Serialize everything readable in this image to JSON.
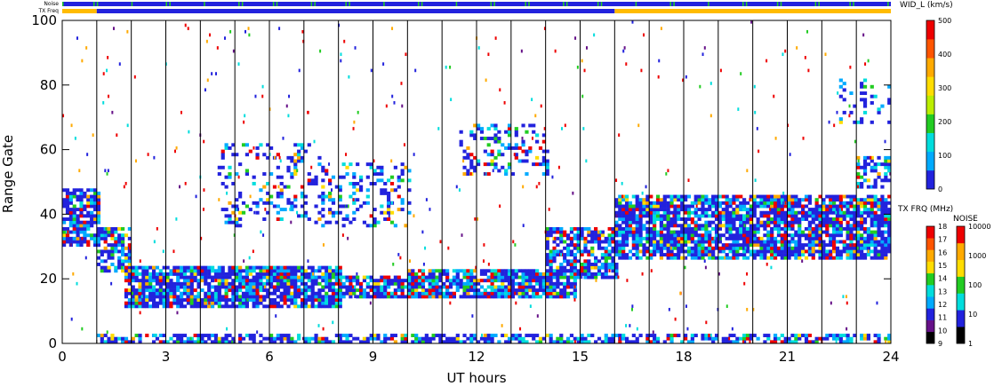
{
  "chart_data": {
    "type": "heatmap",
    "xlabel": "UT hours",
    "ylabel": "Range Gate",
    "xlim": [
      0,
      24
    ],
    "ylim": [
      0,
      100
    ],
    "x_ticks": [
      "0",
      "3",
      "6",
      "9",
      "12",
      "15",
      "18",
      "21",
      "24"
    ],
    "y_ticks": [
      "0",
      "20",
      "40",
      "60",
      "80",
      "100"
    ],
    "strip_labels": {
      "noise": "Noise",
      "txfreq": "TX Freq"
    },
    "strips": {
      "noise_color": "#2222dd",
      "noise_flecks_color": "#22cc22",
      "txfreq_segments": [
        {
          "from": 0,
          "to": 1.0,
          "color": "#ffbb00"
        },
        {
          "from": 1.0,
          "to": 16.0,
          "color": "#2222dd"
        },
        {
          "from": 16.0,
          "to": 24.0,
          "color": "#ffbb00"
        }
      ]
    },
    "vertical_lines_hours": [
      1,
      2,
      3,
      4,
      5,
      6,
      7,
      8,
      9,
      10,
      11,
      12,
      13,
      14,
      15,
      16,
      17,
      18,
      19,
      20,
      21,
      22,
      23
    ],
    "scatter_bands": [
      {
        "x0": 0.0,
        "x1": 1.0,
        "y0": 30,
        "y1": 48,
        "density": 0.75
      },
      {
        "x0": 1.0,
        "x1": 2.0,
        "y0": 22,
        "y1": 36,
        "density": 0.65
      },
      {
        "x0": 1.8,
        "x1": 8.0,
        "y0": 11,
        "y1": 24,
        "density": 0.85
      },
      {
        "x0": 8.0,
        "x1": 10.0,
        "y0": 14,
        "y1": 21,
        "density": 0.8
      },
      {
        "x0": 10.0,
        "x1": 14.8,
        "y0": 14,
        "y1": 23,
        "density": 0.85
      },
      {
        "x0": 14.0,
        "x1": 16.0,
        "y0": 20,
        "y1": 36,
        "density": 0.7
      },
      {
        "x0": 16.0,
        "x1": 24.0,
        "y0": 26,
        "y1": 46,
        "density": 0.8
      },
      {
        "x0": 1.0,
        "x1": 24.0,
        "y0": 0,
        "y1": 3,
        "density": 0.6
      },
      {
        "x0": 4.5,
        "x1": 7.5,
        "y0": 36,
        "y1": 62,
        "density": 0.2
      },
      {
        "x0": 7.5,
        "x1": 10.0,
        "y0": 36,
        "y1": 56,
        "density": 0.25
      },
      {
        "x0": 11.5,
        "x1": 14.0,
        "y0": 52,
        "y1": 68,
        "density": 0.3
      },
      {
        "x0": 23.0,
        "x1": 24.0,
        "y0": 48,
        "y1": 58,
        "density": 0.4
      },
      {
        "x0": 22.5,
        "x1": 24.0,
        "y0": 68,
        "y1": 82,
        "density": 0.2
      }
    ],
    "colorbars": [
      {
        "title": "WID_L (km/s)",
        "ticks": [
          "0",
          "100",
          "200",
          "300",
          "400",
          "500"
        ],
        "colors": [
          "#2222dd",
          "#00aaff",
          "#00dddd",
          "#22cc22",
          "#bbee00",
          "#ffdd00",
          "#ffaa00",
          "#ff5500",
          "#ee0000"
        ]
      },
      {
        "title": "TX FRQ (MHz)",
        "ticks": [
          "9",
          "10",
          "11",
          "12",
          "13",
          "14",
          "15",
          "16",
          "17",
          "18"
        ],
        "colors": [
          "#000000",
          "#661188",
          "#2222dd",
          "#00aaff",
          "#00dddd",
          "#22cc22",
          "#ffdd00",
          "#ffaa00",
          "#ff5500",
          "#ee0000"
        ]
      },
      {
        "title": "NOISE",
        "ticks": [
          "1",
          "10",
          "100",
          "1000",
          "10000"
        ],
        "colors": [
          "#000000",
          "#2222dd",
          "#00dddd",
          "#22cc22",
          "#ffdd00",
          "#ffaa00",
          "#ee0000"
        ]
      }
    ]
  }
}
